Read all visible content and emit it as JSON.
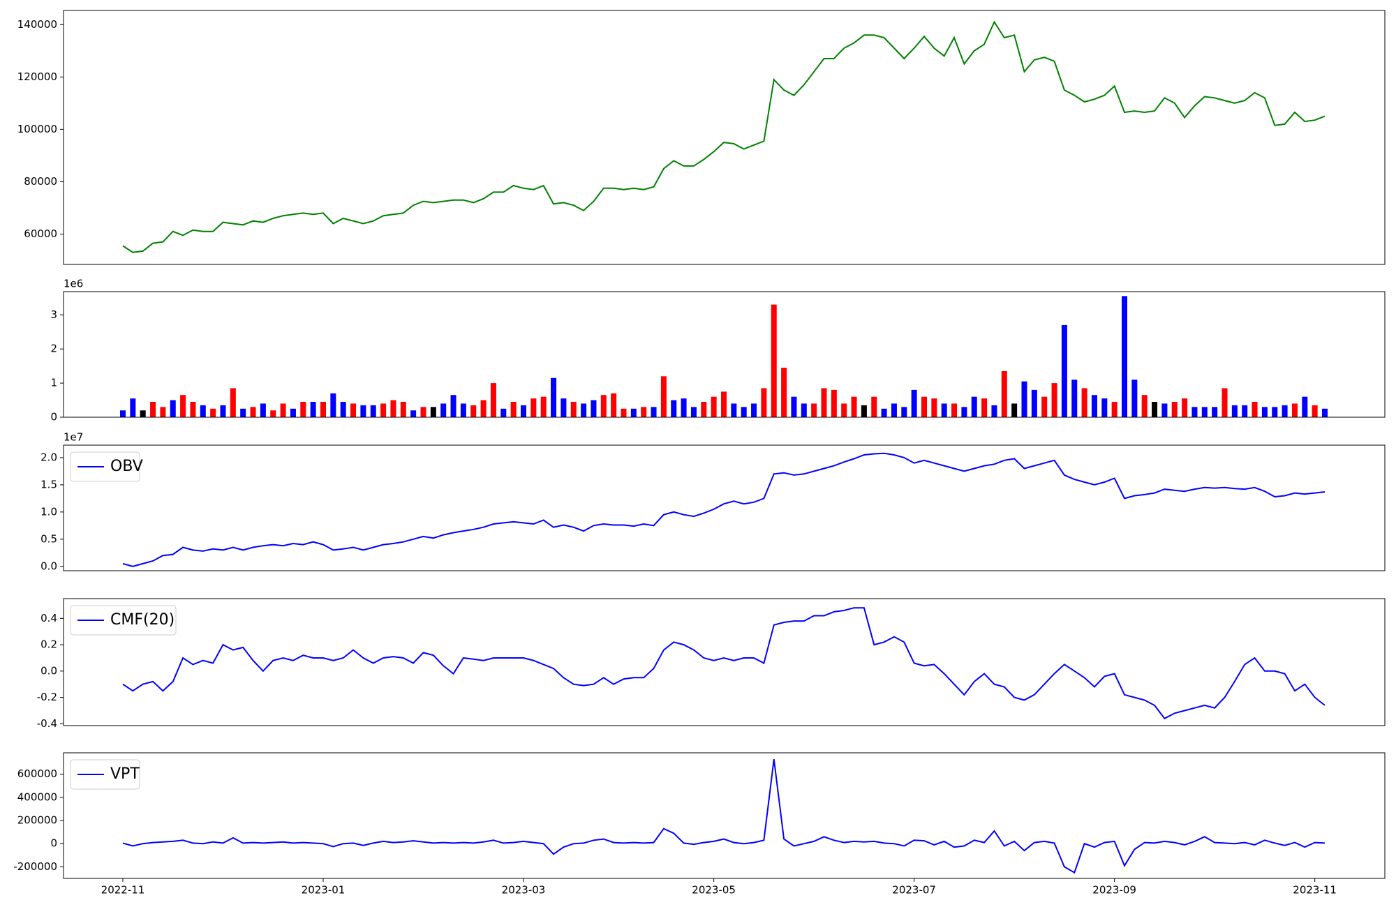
{
  "chart_data": [
    {
      "type": "line",
      "color": "green",
      "values": [
        55500,
        53000,
        53500,
        56500,
        57000,
        61000,
        59500,
        61500,
        61000,
        61000,
        64500,
        64000,
        63500,
        65000,
        64500,
        66000,
        67000,
        67500,
        68000,
        67500,
        68000,
        64000,
        66000,
        65000,
        64000,
        65000,
        67000,
        67500,
        68000,
        71000,
        72500,
        72000,
        72500,
        73000,
        73000,
        72000,
        73500,
        76000,
        76000,
        78500,
        77500,
        77000,
        78500,
        71500,
        72000,
        71000,
        69000,
        72500,
        77500,
        77500,
        77000,
        77500,
        77000,
        78000,
        85000,
        88000,
        86000,
        86000,
        88500,
        91500,
        95000,
        94500,
        92500,
        94000,
        95500,
        119000,
        115000,
        113000,
        117000,
        122000,
        127000,
        127000,
        131000,
        133000,
        136000,
        136000,
        135000,
        131000,
        127000,
        131000,
        135500,
        131000,
        128000,
        135000,
        125000,
        130000,
        132500,
        141000,
        135000,
        136000,
        122000,
        126500,
        127500,
        126000,
        115000,
        113000,
        110500,
        111500,
        113000,
        116500,
        106500,
        107000,
        106500,
        107000,
        112000,
        110000,
        104500,
        109000,
        112500,
        112000,
        111000,
        110000,
        111000,
        114000,
        112000,
        101500,
        102000,
        106500,
        103000,
        103500,
        105000
      ],
      "ylim": [
        48400,
        145400
      ],
      "yticks": [
        60000,
        80000,
        100000,
        120000,
        140000
      ]
    },
    {
      "type": "bar",
      "offset_label": "1e6",
      "values": [
        0.2,
        0.55,
        0.2,
        0.45,
        0.3,
        0.5,
        0.65,
        0.45,
        0.35,
        0.25,
        0.35,
        0.85,
        0.25,
        0.3,
        0.4,
        0.2,
        0.4,
        0.25,
        0.45,
        0.45,
        0.45,
        0.7,
        0.45,
        0.4,
        0.35,
        0.35,
        0.4,
        0.5,
        0.45,
        0.2,
        0.3,
        0.3,
        0.4,
        0.65,
        0.4,
        0.35,
        0.5,
        1.0,
        0.25,
        0.45,
        0.35,
        0.55,
        0.6,
        1.15,
        0.55,
        0.45,
        0.4,
        0.5,
        0.65,
        0.7,
        0.25,
        0.25,
        0.3,
        0.3,
        1.2,
        0.5,
        0.55,
        0.3,
        0.45,
        0.6,
        0.75,
        0.4,
        0.3,
        0.4,
        0.85,
        3.3,
        1.45,
        0.6,
        0.4,
        0.4,
        0.85,
        0.8,
        0.4,
        0.6,
        0.35,
        0.6,
        0.25,
        0.4,
        0.3,
        0.8,
        0.6,
        0.55,
        0.4,
        0.4,
        0.3,
        0.6,
        0.55,
        0.35,
        1.35,
        0.4,
        1.05,
        0.8,
        0.6,
        1.0,
        2.7,
        1.1,
        0.85,
        0.65,
        0.55,
        0.45,
        3.55,
        1.1,
        0.65,
        0.45,
        0.4,
        0.45,
        0.55,
        0.3,
        0.3,
        0.3,
        0.85,
        0.35,
        0.35,
        0.45,
        0.3,
        0.3,
        0.35,
        0.4,
        0.6,
        0.35,
        0.25
      ],
      "colors": [
        "blue",
        "blue",
        "black",
        "red",
        "red",
        "blue",
        "red",
        "red",
        "blue",
        "red",
        "blue",
        "red",
        "blue",
        "red",
        "blue",
        "red",
        "red",
        "blue",
        "red",
        "blue",
        "red",
        "blue",
        "blue",
        "red",
        "blue",
        "blue",
        "red",
        "red",
        "red",
        "blue",
        "red",
        "black",
        "blue",
        "blue",
        "blue",
        "red",
        "red",
        "red",
        "blue",
        "red",
        "blue",
        "red",
        "red",
        "blue",
        "blue",
        "red",
        "blue",
        "blue",
        "red",
        "red",
        "red",
        "blue",
        "red",
        "blue",
        "red",
        "blue",
        "blue",
        "blue",
        "red",
        "red",
        "red",
        "blue",
        "blue",
        "blue",
        "red",
        "red",
        "red",
        "blue",
        "blue",
        "red",
        "red",
        "red",
        "red",
        "red",
        "black",
        "red",
        "blue",
        "blue",
        "blue",
        "blue",
        "red",
        "red",
        "blue",
        "red",
        "blue",
        "blue",
        "red",
        "blue",
        "red",
        "black",
        "blue",
        "blue",
        "red",
        "red",
        "blue",
        "blue",
        "red",
        "blue",
        "blue",
        "red",
        "blue",
        "blue",
        "red",
        "black",
        "blue",
        "red",
        "red",
        "blue",
        "blue",
        "blue",
        "red",
        "blue",
        "blue",
        "red",
        "blue",
        "blue",
        "blue",
        "red",
        "blue",
        "red",
        "blue"
      ],
      "ylim": [
        0,
        3.68
      ],
      "yticks": [
        0,
        1,
        2,
        3
      ]
    },
    {
      "type": "line",
      "offset_label": "1e7",
      "legend": "upper left",
      "series": [
        {
          "name": "OBV",
          "color": "blue",
          "values": [
            0.05,
            0.0,
            0.05,
            0.1,
            0.2,
            0.22,
            0.35,
            0.3,
            0.28,
            0.32,
            0.3,
            0.35,
            0.3,
            0.35,
            0.38,
            0.4,
            0.38,
            0.42,
            0.4,
            0.45,
            0.4,
            0.3,
            0.32,
            0.35,
            0.3,
            0.35,
            0.4,
            0.42,
            0.45,
            0.5,
            0.55,
            0.52,
            0.58,
            0.62,
            0.65,
            0.68,
            0.72,
            0.78,
            0.8,
            0.82,
            0.8,
            0.78,
            0.85,
            0.72,
            0.76,
            0.72,
            0.65,
            0.75,
            0.78,
            0.76,
            0.76,
            0.74,
            0.78,
            0.75,
            0.95,
            1.0,
            0.95,
            0.92,
            0.98,
            1.05,
            1.15,
            1.2,
            1.15,
            1.18,
            1.25,
            1.7,
            1.72,
            1.68,
            1.7,
            1.75,
            1.8,
            1.85,
            1.92,
            1.98,
            2.05,
            2.07,
            2.08,
            2.05,
            2.0,
            1.9,
            1.95,
            1.9,
            1.85,
            1.8,
            1.75,
            1.8,
            1.85,
            1.88,
            1.95,
            1.98,
            1.8,
            1.85,
            1.9,
            1.95,
            1.68,
            1.6,
            1.55,
            1.5,
            1.55,
            1.62,
            1.25,
            1.3,
            1.32,
            1.35,
            1.42,
            1.4,
            1.38,
            1.42,
            1.45,
            1.44,
            1.45,
            1.43,
            1.42,
            1.45,
            1.38,
            1.28,
            1.3,
            1.35,
            1.33,
            1.35,
            1.37
          ]
        }
      ],
      "ylim": [
        -0.08,
        2.23
      ],
      "yticks": [
        {
          "value": 0,
          "label": "0.0"
        },
        0.5,
        {
          "value": 1,
          "label": "1.0"
        },
        1.5,
        {
          "value": 2,
          "label": "2.0"
        }
      ]
    },
    {
      "type": "line",
      "legend": "upper left",
      "series": [
        {
          "name": "CMF(20)",
          "color": "blue",
          "values": [
            -0.1,
            -0.15,
            -0.1,
            -0.08,
            -0.15,
            -0.08,
            0.1,
            0.05,
            0.08,
            0.06,
            0.2,
            0.16,
            0.18,
            0.08,
            0.0,
            0.08,
            0.1,
            0.08,
            0.12,
            0.1,
            0.1,
            0.08,
            0.1,
            0.16,
            0.1,
            0.06,
            0.1,
            0.11,
            0.1,
            0.06,
            0.14,
            0.12,
            0.04,
            -0.02,
            0.1,
            0.09,
            0.08,
            0.1,
            0.1,
            0.1,
            0.1,
            0.08,
            0.05,
            0.02,
            -0.05,
            -0.1,
            -0.11,
            -0.1,
            -0.05,
            -0.1,
            -0.06,
            -0.05,
            -0.05,
            0.02,
            0.16,
            0.22,
            0.2,
            0.16,
            0.1,
            0.08,
            0.1,
            0.08,
            0.1,
            0.1,
            0.06,
            0.35,
            0.37,
            0.38,
            0.38,
            0.42,
            0.42,
            0.45,
            0.46,
            0.48,
            0.48,
            0.2,
            0.22,
            0.26,
            0.22,
            0.06,
            0.04,
            0.05,
            -0.02,
            -0.1,
            -0.18,
            -0.08,
            -0.02,
            -0.1,
            -0.12,
            -0.2,
            -0.22,
            -0.18,
            -0.1,
            -0.02,
            0.05,
            0.0,
            -0.05,
            -0.12,
            -0.04,
            -0.02,
            -0.18,
            -0.2,
            -0.22,
            -0.26,
            -0.36,
            -0.32,
            -0.3,
            -0.28,
            -0.26,
            -0.28,
            -0.2,
            -0.08,
            0.05,
            0.1,
            0.0,
            0.0,
            -0.02,
            -0.15,
            -0.1,
            -0.2,
            -0.26
          ]
        }
      ],
      "ylim": [
        -0.414,
        0.55
      ],
      "yticks": [
        -0.4,
        -0.2,
        {
          "value": 0,
          "label": "0.0"
        },
        0.2,
        0.4
      ]
    },
    {
      "type": "line",
      "legend": "upper left",
      "series": [
        {
          "name": "VPT",
          "color": "blue",
          "values": [
            5000,
            -20000,
            0,
            10000,
            15000,
            20000,
            30000,
            5000,
            0,
            15000,
            5000,
            50000,
            5000,
            10000,
            5000,
            10000,
            15000,
            5000,
            10000,
            5000,
            0,
            -25000,
            0,
            5000,
            -15000,
            5000,
            20000,
            10000,
            15000,
            25000,
            15000,
            5000,
            10000,
            5000,
            10000,
            5000,
            15000,
            30000,
            5000,
            10000,
            20000,
            10000,
            0,
            -90000,
            -30000,
            0,
            5000,
            30000,
            40000,
            10000,
            5000,
            10000,
            5000,
            10000,
            130000,
            90000,
            5000,
            -5000,
            10000,
            20000,
            40000,
            10000,
            0,
            10000,
            30000,
            730000,
            40000,
            -20000,
            0,
            20000,
            60000,
            30000,
            10000,
            20000,
            15000,
            20000,
            5000,
            0,
            -20000,
            30000,
            25000,
            -10000,
            20000,
            -30000,
            -20000,
            30000,
            10000,
            110000,
            -20000,
            20000,
            -60000,
            10000,
            20000,
            5000,
            -200000,
            -250000,
            0,
            -30000,
            10000,
            20000,
            -190000,
            -50000,
            10000,
            5000,
            20000,
            10000,
            -10000,
            20000,
            60000,
            10000,
            5000,
            0,
            10000,
            -10000,
            30000,
            5000,
            -15000,
            10000,
            -30000,
            10000,
            5000
          ]
        }
      ],
      "ylim": [
        -300000,
        785000
      ],
      "yticks": [
        -200000,
        0,
        200000,
        400000,
        600000
      ],
      "categories": [
        "2022-11",
        null,
        null,
        null,
        null,
        null,
        null,
        null,
        null,
        null,
        null,
        null,
        null,
        null,
        null,
        null,
        null,
        null,
        null,
        null,
        "2023-01",
        null,
        null,
        null,
        null,
        null,
        null,
        null,
        null,
        null,
        null,
        null,
        null,
        null,
        null,
        null,
        null,
        null,
        null,
        null,
        "2023-03",
        null,
        null,
        null,
        null,
        null,
        null,
        null,
        null,
        null,
        null,
        null,
        null,
        null,
        null,
        null,
        null,
        null,
        null,
        "2023-05",
        null,
        null,
        null,
        null,
        null,
        null,
        null,
        null,
        null,
        null,
        null,
        null,
        null,
        null,
        null,
        null,
        null,
        null,
        null,
        "2023-07",
        null,
        null,
        null,
        null,
        null,
        null,
        null,
        null,
        null,
        null,
        null,
        null,
        null,
        null,
        null,
        null,
        null,
        null,
        null,
        "2023-09",
        null,
        null,
        null,
        null,
        null,
        null,
        null,
        null,
        null,
        null,
        null,
        null,
        null,
        null,
        null,
        null,
        null,
        null,
        null,
        "2023-11",
        null
      ]
    }
  ]
}
